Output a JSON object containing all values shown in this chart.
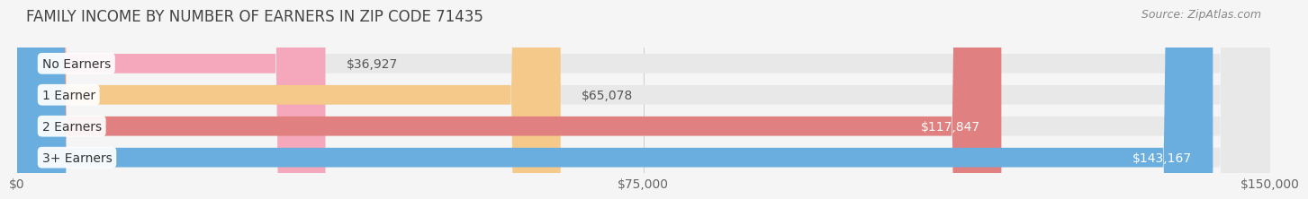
{
  "title": "FAMILY INCOME BY NUMBER OF EARNERS IN ZIP CODE 71435",
  "source": "Source: ZipAtlas.com",
  "categories": [
    "No Earners",
    "1 Earner",
    "2 Earners",
    "3+ Earners"
  ],
  "values": [
    36927,
    65078,
    117847,
    143167
  ],
  "bar_colors": [
    "#f5a8bb",
    "#f5c98a",
    "#e08080",
    "#6aaee0"
  ],
  "label_colors": [
    "#777777",
    "#777777",
    "#ffffff",
    "#ffffff"
  ],
  "xlim": [
    0,
    150000
  ],
  "xticks": [
    0,
    75000,
    150000
  ],
  "xtick_labels": [
    "$0",
    "$75,000",
    "$150,000"
  ],
  "background_color": "#f5f5f5",
  "bar_bg_color": "#e8e8e8",
  "title_fontsize": 12,
  "source_fontsize": 9,
  "label_fontsize": 10,
  "value_fontsize": 10,
  "tick_fontsize": 10,
  "bar_height": 0.62,
  "fig_width": 14.06,
  "fig_height": 2.33
}
